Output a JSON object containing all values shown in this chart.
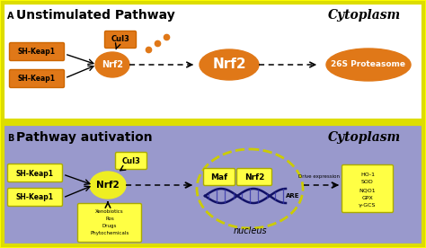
{
  "outer_bg": "#FFFF00",
  "panel_a_bg": "#FFFFFF",
  "panel_b_bg": "#9999CC",
  "orange": "#E07818",
  "orange_dark": "#CC6600",
  "yellow_box": "#FFFF44",
  "yellow_ellipse": "#EEEE22",
  "dark_text": "#000000",
  "panel_a_title": "Unstimulated Pathway",
  "panel_b_title": "Pathway autivation",
  "cytoplasm_label": "Cytoplasm",
  "panel_a_label": "A",
  "panel_b_label": "B",
  "nucleus_label": "nucleus",
  "drive_expr_label": "Drive expression",
  "are_label": "ARE",
  "gene_list": [
    "HO-1",
    "SOD",
    "NQO1",
    "GPX",
    "γ-GCS"
  ],
  "stim_list": [
    "Xenobiotics",
    "Ros",
    "Drugs",
    "Phytochemicals"
  ]
}
